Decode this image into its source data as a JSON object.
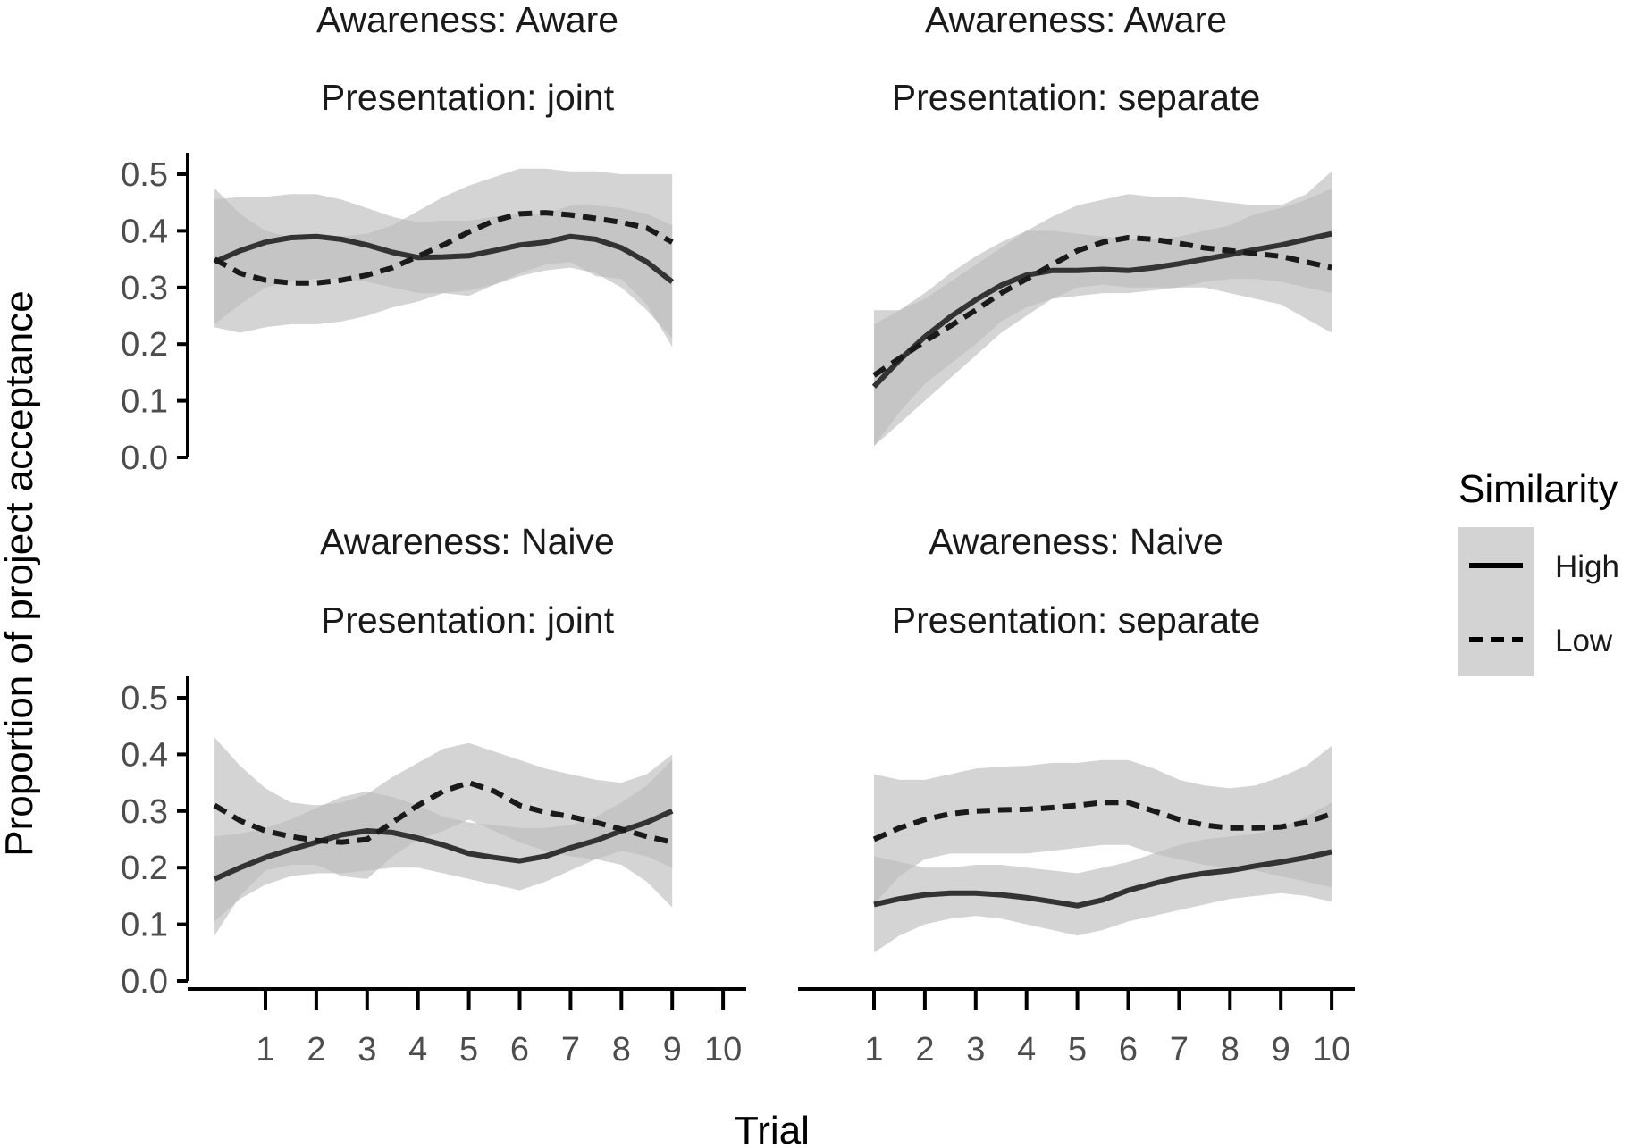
{
  "chart_data": {
    "type": "line",
    "xlabel": "Trial",
    "ylabel": "Proportion of project acceptance",
    "ylim": [
      0,
      0.5
    ],
    "yticks": [
      "0.0",
      "0.1",
      "0.2",
      "0.3",
      "0.4",
      "0.5"
    ],
    "xticks": [
      "1",
      "2",
      "3",
      "4",
      "5",
      "6",
      "7",
      "8",
      "9",
      "10"
    ],
    "legend": {
      "title": "Similarity",
      "placement": "right",
      "entries": [
        {
          "label": "High",
          "linetype": "solid"
        },
        {
          "label": "Low",
          "linetype": "dashed"
        }
      ]
    },
    "colors": {
      "line": "#333333",
      "ribbon": "#bdbdbd",
      "legend_key": "#d3d3d3",
      "axis": "#000000"
    },
    "panels": [
      {
        "strip": [
          "Awareness: Aware",
          "Presentation: joint"
        ],
        "series": [
          {
            "name": "High",
            "x": [
              0,
              0.5,
              1,
              1.5,
              2,
              2.5,
              3,
              3.5,
              4,
              4.5,
              5,
              5.5,
              6,
              6.5,
              7,
              7.5,
              8,
              8.5,
              9
            ],
            "y": [
              0.345,
              0.365,
              0.38,
              0.388,
              0.39,
              0.385,
              0.375,
              0.362,
              0.353,
              0.354,
              0.356,
              0.365,
              0.375,
              0.38,
              0.39,
              0.385,
              0.37,
              0.345,
              0.31
            ],
            "lo": [
              0.235,
              0.27,
              0.3,
              0.31,
              0.315,
              0.315,
              0.31,
              0.3,
              0.29,
              0.29,
              0.295,
              0.305,
              0.32,
              0.33,
              0.335,
              0.325,
              0.3,
              0.26,
              0.21
            ],
            "hi": [
              0.455,
              0.46,
              0.46,
              0.465,
              0.465,
              0.455,
              0.44,
              0.425,
              0.415,
              0.418,
              0.418,
              0.425,
              0.43,
              0.43,
              0.445,
              0.445,
              0.44,
              0.43,
              0.41
            ]
          },
          {
            "name": "Low",
            "x": [
              0,
              0.5,
              1,
              1.5,
              2,
              2.5,
              3,
              3.5,
              4,
              4.5,
              5,
              5.5,
              6,
              6.5,
              7,
              7.5,
              8,
              8.5,
              9
            ],
            "y": [
              0.35,
              0.325,
              0.313,
              0.308,
              0.308,
              0.313,
              0.322,
              0.335,
              0.355,
              0.375,
              0.398,
              0.418,
              0.43,
              0.432,
              0.428,
              0.422,
              0.415,
              0.405,
              0.38
            ],
            "lo": [
              0.23,
              0.22,
              0.23,
              0.235,
              0.235,
              0.24,
              0.25,
              0.265,
              0.275,
              0.29,
              0.285,
              0.305,
              0.325,
              0.34,
              0.345,
              0.32,
              0.315,
              0.27,
              0.195
            ],
            "hi": [
              0.475,
              0.43,
              0.4,
              0.388,
              0.385,
              0.39,
              0.395,
              0.41,
              0.435,
              0.46,
              0.48,
              0.495,
              0.51,
              0.51,
              0.505,
              0.505,
              0.5,
              0.5,
              0.5
            ]
          }
        ]
      },
      {
        "strip": [
          "Awareness: Aware",
          "Presentation: separate"
        ],
        "series": [
          {
            "name": "High",
            "x": [
              1,
              1.5,
              2,
              2.5,
              3,
              3.5,
              4,
              4.5,
              5,
              5.5,
              6,
              6.5,
              7,
              7.5,
              8,
              8.5,
              9,
              9.5,
              10
            ],
            "y": [
              0.125,
              0.172,
              0.213,
              0.248,
              0.278,
              0.304,
              0.322,
              0.33,
              0.33,
              0.332,
              0.33,
              0.335,
              0.342,
              0.35,
              0.358,
              0.367,
              0.375,
              0.385,
              0.395
            ],
            "lo": [
              0.02,
              0.08,
              0.13,
              0.165,
              0.2,
              0.24,
              0.265,
              0.28,
              0.285,
              0.29,
              0.29,
              0.295,
              0.3,
              0.31,
              0.315,
              0.315,
              0.31,
              0.3,
              0.29
            ],
            "hi": [
              0.235,
              0.26,
              0.29,
              0.325,
              0.355,
              0.38,
              0.4,
              0.4,
              0.395,
              0.39,
              0.385,
              0.385,
              0.39,
              0.4,
              0.41,
              0.43,
              0.44,
              0.455,
              0.475
            ]
          },
          {
            "name": "Low",
            "x": [
              1,
              1.5,
              2,
              2.5,
              3,
              3.5,
              4,
              4.5,
              5,
              5.5,
              6,
              6.5,
              7,
              7.5,
              8,
              8.5,
              9,
              9.5,
              10
            ],
            "y": [
              0.145,
              0.175,
              0.205,
              0.232,
              0.26,
              0.29,
              0.315,
              0.34,
              0.365,
              0.38,
              0.388,
              0.385,
              0.378,
              0.37,
              0.365,
              0.36,
              0.355,
              0.345,
              0.335
            ],
            "lo": [
              0.02,
              0.06,
              0.1,
              0.14,
              0.18,
              0.22,
              0.25,
              0.28,
              0.3,
              0.305,
              0.3,
              0.3,
              0.3,
              0.3,
              0.29,
              0.28,
              0.27,
              0.245,
              0.22
            ],
            "hi": [
              0.26,
              0.26,
              0.28,
              0.31,
              0.34,
              0.37,
              0.4,
              0.425,
              0.445,
              0.455,
              0.465,
              0.46,
              0.46,
              0.455,
              0.45,
              0.445,
              0.445,
              0.465,
              0.505
            ]
          }
        ]
      },
      {
        "strip": [
          "Awareness: Naive",
          "Presentation: joint"
        ],
        "series": [
          {
            "name": "High",
            "x": [
              0,
              0.5,
              1,
              1.5,
              2,
              2.5,
              3,
              3.5,
              4,
              4.5,
              5,
              5.5,
              6,
              6.5,
              7,
              7.5,
              8,
              8.5,
              9
            ],
            "y": [
              0.18,
              0.2,
              0.218,
              0.232,
              0.245,
              0.258,
              0.265,
              0.262,
              0.252,
              0.24,
              0.225,
              0.218,
              0.212,
              0.22,
              0.235,
              0.248,
              0.265,
              0.28,
              0.3
            ],
            "lo": [
              0.105,
              0.145,
              0.17,
              0.185,
              0.19,
              0.19,
              0.195,
              0.2,
              0.2,
              0.19,
              0.18,
              0.17,
              0.16,
              0.175,
              0.195,
              0.215,
              0.23,
              0.22,
              0.2
            ],
            "hi": [
              0.255,
              0.26,
              0.27,
              0.285,
              0.305,
              0.325,
              0.335,
              0.325,
              0.31,
              0.29,
              0.28,
              0.275,
              0.27,
              0.27,
              0.275,
              0.29,
              0.315,
              0.345,
              0.39
            ]
          },
          {
            "name": "Low",
            "x": [
              0,
              0.5,
              1,
              1.5,
              2,
              2.5,
              3,
              3.5,
              4,
              4.5,
              5,
              5.5,
              6,
              6.5,
              7,
              7.5,
              8,
              8.5,
              9
            ],
            "y": [
              0.31,
              0.283,
              0.265,
              0.255,
              0.248,
              0.245,
              0.25,
              0.28,
              0.31,
              0.335,
              0.35,
              0.335,
              0.31,
              0.298,
              0.29,
              0.28,
              0.268,
              0.255,
              0.245
            ],
            "lo": [
              0.08,
              0.15,
              0.195,
              0.205,
              0.205,
              0.185,
              0.18,
              0.22,
              0.25,
              0.265,
              0.285,
              0.265,
              0.245,
              0.23,
              0.22,
              0.215,
              0.205,
              0.175,
              0.13
            ],
            "hi": [
              0.43,
              0.38,
              0.34,
              0.315,
              0.31,
              0.315,
              0.33,
              0.36,
              0.385,
              0.41,
              0.42,
              0.405,
              0.39,
              0.375,
              0.365,
              0.355,
              0.35,
              0.365,
              0.4
            ]
          }
        ]
      },
      {
        "strip": [
          "Awareness: Naive",
          "Presentation: separate"
        ],
        "series": [
          {
            "name": "High",
            "x": [
              1,
              1.5,
              2,
              2.5,
              3,
              3.5,
              4,
              4.5,
              5,
              5.5,
              6,
              6.5,
              7,
              7.5,
              8,
              8.5,
              9,
              9.5,
              10
            ],
            "y": [
              0.135,
              0.145,
              0.152,
              0.155,
              0.155,
              0.152,
              0.147,
              0.14,
              0.133,
              0.143,
              0.16,
              0.172,
              0.183,
              0.19,
              0.195,
              0.203,
              0.21,
              0.218,
              0.228
            ],
            "lo": [
              0.05,
              0.08,
              0.1,
              0.11,
              0.115,
              0.11,
              0.1,
              0.09,
              0.08,
              0.09,
              0.105,
              0.115,
              0.125,
              0.135,
              0.145,
              0.15,
              0.155,
              0.15,
              0.14
            ],
            "hi": [
              0.22,
              0.21,
              0.2,
              0.2,
              0.205,
              0.205,
              0.2,
              0.195,
              0.19,
              0.2,
              0.21,
              0.225,
              0.24,
              0.25,
              0.255,
              0.26,
              0.27,
              0.29,
              0.315
            ]
          },
          {
            "name": "Low",
            "x": [
              1,
              1.5,
              2,
              2.5,
              3,
              3.5,
              4,
              4.5,
              5,
              5.5,
              6,
              6.5,
              7,
              7.5,
              8,
              8.5,
              9,
              9.5,
              10
            ],
            "y": [
              0.25,
              0.27,
              0.285,
              0.295,
              0.3,
              0.302,
              0.303,
              0.306,
              0.31,
              0.315,
              0.315,
              0.3,
              0.285,
              0.275,
              0.27,
              0.27,
              0.272,
              0.28,
              0.295
            ],
            "lo": [
              0.135,
              0.185,
              0.215,
              0.225,
              0.225,
              0.225,
              0.225,
              0.23,
              0.235,
              0.24,
              0.24,
              0.225,
              0.215,
              0.205,
              0.2,
              0.195,
              0.185,
              0.175,
              0.165
            ],
            "hi": [
              0.365,
              0.355,
              0.355,
              0.365,
              0.375,
              0.378,
              0.38,
              0.385,
              0.385,
              0.39,
              0.39,
              0.375,
              0.355,
              0.345,
              0.34,
              0.345,
              0.36,
              0.38,
              0.415
            ]
          }
        ]
      }
    ]
  }
}
